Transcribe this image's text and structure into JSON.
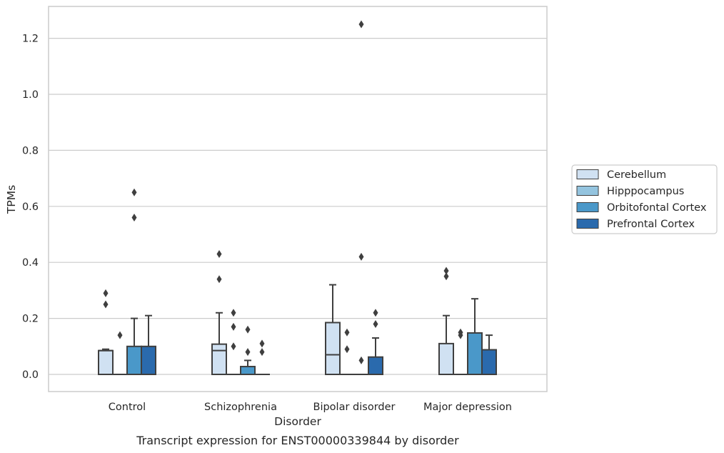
{
  "chart_data": {
    "type": "box",
    "title": "",
    "caption": "Transcript expression for ENST00000339844 by disorder",
    "xlabel": "Disorder",
    "ylabel": "TPMs",
    "ylim": [
      -0.06,
      1.32
    ],
    "yticks": [
      0.0,
      0.2,
      0.4,
      0.6,
      0.8,
      1.0,
      1.2
    ],
    "ytick_labels": [
      "0.0",
      "0.2",
      "0.4",
      "0.6",
      "0.8",
      "1.0",
      "1.2"
    ],
    "grid": "horizontal",
    "legend_position": "right",
    "categories": [
      "Control",
      "Schizophrenia",
      "Bipolar disorder",
      "Major depression"
    ],
    "series": [
      {
        "name": "Cerebellum",
        "color": "#d0e1f2",
        "boxes": [
          {
            "q1": 0.0,
            "median": 0.085,
            "q3": 0.085,
            "whisker_low": 0.0,
            "whisker_high": 0.09,
            "outliers": [
              0.29,
              0.25
            ]
          },
          {
            "q1": 0.0,
            "median": 0.085,
            "q3": 0.108,
            "whisker_low": 0.0,
            "whisker_high": 0.22,
            "outliers": [
              0.43,
              0.34
            ]
          },
          {
            "q1": 0.0,
            "median": 0.07,
            "q3": 0.185,
            "whisker_low": 0.0,
            "whisker_high": 0.32,
            "outliers": []
          },
          {
            "q1": 0.0,
            "median": 0.0,
            "q3": 0.11,
            "whisker_low": 0.0,
            "whisker_high": 0.21,
            "outliers": [
              0.37,
              0.35
            ]
          }
        ]
      },
      {
        "name": "Hipppocampus",
        "color": "#94c4df",
        "boxes": [
          {
            "q1": 0.0,
            "median": 0.0,
            "q3": 0.0,
            "whisker_low": 0.0,
            "whisker_high": 0.0,
            "outliers": [
              0.14
            ]
          },
          {
            "q1": 0.0,
            "median": 0.0,
            "q3": 0.0,
            "whisker_low": 0.0,
            "whisker_high": 0.0,
            "outliers": [
              0.22,
              0.17,
              0.1
            ]
          },
          {
            "q1": 0.0,
            "median": 0.0,
            "q3": 0.0,
            "whisker_low": 0.0,
            "whisker_high": 0.0,
            "outliers": [
              0.15,
              0.09
            ]
          },
          {
            "q1": 0.0,
            "median": 0.0,
            "q3": 0.0,
            "whisker_low": 0.0,
            "whisker_high": 0.0,
            "outliers": [
              0.15,
              0.14
            ]
          }
        ]
      },
      {
        "name": "Orbitofontal Cortex",
        "color": "#4a98c9",
        "boxes": [
          {
            "q1": 0.0,
            "median": 0.0,
            "q3": 0.1,
            "whisker_low": 0.0,
            "whisker_high": 0.2,
            "outliers": [
              0.65,
              0.56
            ]
          },
          {
            "q1": 0.0,
            "median": 0.0,
            "q3": 0.028,
            "whisker_low": 0.0,
            "whisker_high": 0.05,
            "outliers": [
              0.16,
              0.08
            ]
          },
          {
            "q1": 0.0,
            "median": 0.0,
            "q3": 0.0,
            "whisker_low": 0.0,
            "whisker_high": 0.0,
            "outliers": [
              1.25,
              0.42,
              0.05
            ]
          },
          {
            "q1": 0.0,
            "median": 0.0,
            "q3": 0.148,
            "whisker_low": 0.0,
            "whisker_high": 0.27,
            "outliers": []
          }
        ]
      },
      {
        "name": "Prefrontal Cortex",
        "color": "#2a6aad",
        "boxes": [
          {
            "q1": 0.0,
            "median": 0.0,
            "q3": 0.1,
            "whisker_low": 0.0,
            "whisker_high": 0.21,
            "outliers": []
          },
          {
            "q1": 0.0,
            "median": 0.0,
            "q3": 0.0,
            "whisker_low": 0.0,
            "whisker_high": 0.0,
            "outliers": [
              0.11,
              0.08
            ]
          },
          {
            "q1": 0.0,
            "median": 0.0,
            "q3": 0.062,
            "whisker_low": 0.0,
            "whisker_high": 0.13,
            "outliers": [
              0.22,
              0.18
            ]
          },
          {
            "q1": 0.0,
            "median": 0.0,
            "q3": 0.088,
            "whisker_low": 0.0,
            "whisker_high": 0.14,
            "outliers": []
          }
        ]
      }
    ]
  },
  "colors": {
    "line": "#3f3f3f",
    "grid": "#cccccc",
    "frame": "#cccccc",
    "text": "#262626"
  }
}
